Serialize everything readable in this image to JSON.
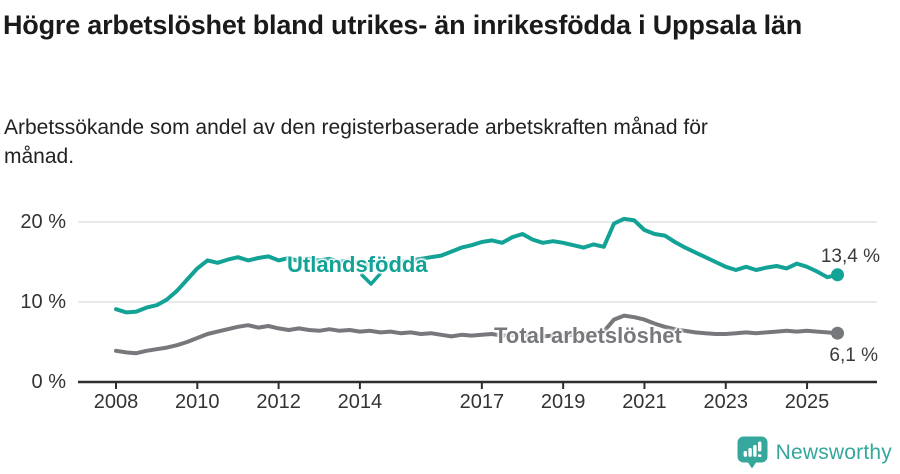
{
  "header": {
    "title": "Högre arbetslöshet bland utrikes- än inrikesfödda i Uppsala län",
    "subtitle": "Arbetssökande som andel av den registerbaserade arbetskraften månad för månad."
  },
  "colors": {
    "teal": "#12a296",
    "gray": "#77787b",
    "grid": "#dcdcdc",
    "axis": "#2e2e2e",
    "title_text": "#1a1a1a",
    "tick_text": "#333333",
    "brand_teal": "#35a79c"
  },
  "chart_data": {
    "type": "line",
    "title": "Högre arbetslöshet bland utrikes- än inrikesfödda i Uppsala län",
    "subtitle": "Arbetssökande som andel av den registerbaserade arbetskraften månad för månad.",
    "x_unit": "year (quarterly points)",
    "x_start": 2008.0,
    "x_step": 0.25,
    "xlim": [
      2007.1,
      2026.7
    ],
    "ylim": [
      0,
      22
    ],
    "grid": "horizontal",
    "x_ticks": [
      "2008",
      "2010",
      "2012",
      "2014",
      "2017",
      "2019",
      "2021",
      "2023",
      "2025"
    ],
    "x_tick_years": [
      2008,
      2010,
      2012,
      2014,
      2017,
      2019,
      2021,
      2023,
      2025
    ],
    "y_ticks": [
      {
        "value": 0,
        "label": "0 %"
      },
      {
        "value": 10,
        "label": "10 %"
      },
      {
        "value": 20,
        "label": "20 %"
      }
    ],
    "series": [
      {
        "id": "utlandsfodda",
        "name": "Utlandsfödda",
        "color": "#12a296",
        "end_label": "13,4 %",
        "end_value": 13.4,
        "values": [
          9.1,
          8.7,
          8.8,
          9.3,
          9.6,
          10.3,
          11.4,
          12.8,
          14.2,
          15.2,
          14.9,
          15.3,
          15.6,
          15.2,
          15.5,
          15.7,
          15.2,
          15.5,
          15.1,
          15.4,
          15.2,
          15.4,
          15.0,
          15.2,
          14.8,
          14.6,
          14.9,
          14.8,
          15.0,
          15.2,
          15.4,
          15.6,
          15.8,
          16.3,
          16.8,
          17.1,
          17.5,
          17.7,
          17.4,
          18.1,
          18.5,
          17.8,
          17.4,
          17.6,
          17.4,
          17.1,
          16.8,
          17.2,
          16.9,
          19.8,
          20.4,
          20.2,
          19.0,
          18.5,
          18.3,
          17.5,
          16.8,
          16.2,
          15.6,
          15.0,
          14.4,
          14.0,
          14.4,
          14.0,
          14.3,
          14.5,
          14.2,
          14.8,
          14.4,
          13.8,
          13.1,
          13.4
        ]
      },
      {
        "id": "total",
        "name": "Total arbetslöshet",
        "color": "#77787b",
        "end_label": "6,1 %",
        "end_value": 6.1,
        "values": [
          3.9,
          3.7,
          3.6,
          3.9,
          4.1,
          4.3,
          4.6,
          5.0,
          5.5,
          6.0,
          6.3,
          6.6,
          6.9,
          7.1,
          6.8,
          7.0,
          6.7,
          6.5,
          6.7,
          6.5,
          6.4,
          6.6,
          6.4,
          6.5,
          6.3,
          6.4,
          6.2,
          6.3,
          6.1,
          6.2,
          6.0,
          6.1,
          5.9,
          5.7,
          5.9,
          5.8,
          5.9,
          6.0,
          5.8,
          5.9,
          5.8,
          5.9,
          5.7,
          5.8,
          5.8,
          5.9,
          6.0,
          6.1,
          6.3,
          7.8,
          8.3,
          8.1,
          7.8,
          7.3,
          6.9,
          6.6,
          6.4,
          6.2,
          6.1,
          6.0,
          6.0,
          6.1,
          6.2,
          6.1,
          6.2,
          6.3,
          6.4,
          6.3,
          6.4,
          6.3,
          6.2,
          6.1
        ]
      }
    ],
    "legend_position": "inline-labels-on-lines"
  },
  "footer": {
    "brand": "Newsworthy"
  }
}
